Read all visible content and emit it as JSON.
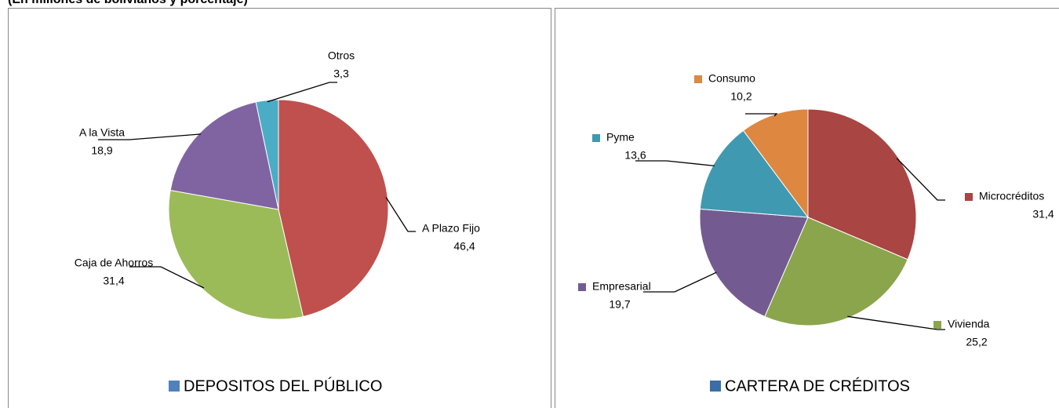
{
  "subtitle": "(En millones de bolivianos y porcentaje)",
  "chart_data": [
    {
      "type": "pie",
      "legend": "DEPOSITOS DEL PÚBLICO",
      "legend_color": "#4f81bd",
      "categories": [
        "A Plazo Fijo",
        "Caja de Ahorros",
        "A la Vista",
        "Otros"
      ],
      "values": [
        46.4,
        31.4,
        18.9,
        3.3
      ],
      "value_labels": [
        "46,4",
        "31,4",
        "18,9",
        "3,3"
      ],
      "colors": [
        "#c0504d",
        "#9bbb59",
        "#8064a2",
        "#4bacc6"
      ]
    },
    {
      "type": "pie",
      "legend": "CARTERA DE CRÉDITOS",
      "legend_color": "#3b6ea5",
      "categories": [
        "Microcréditos",
        "Vivienda",
        "Empresarial",
        "Pyme",
        "Consumo"
      ],
      "values": [
        31.4,
        25.2,
        19.7,
        13.6,
        10.2
      ],
      "value_labels": [
        "31,4",
        "25,2",
        "19,7",
        "13,6",
        "10,2"
      ],
      "colors": [
        "#a94542",
        "#8aa54b",
        "#735b91",
        "#3f99b1",
        "#dd8741"
      ]
    }
  ]
}
